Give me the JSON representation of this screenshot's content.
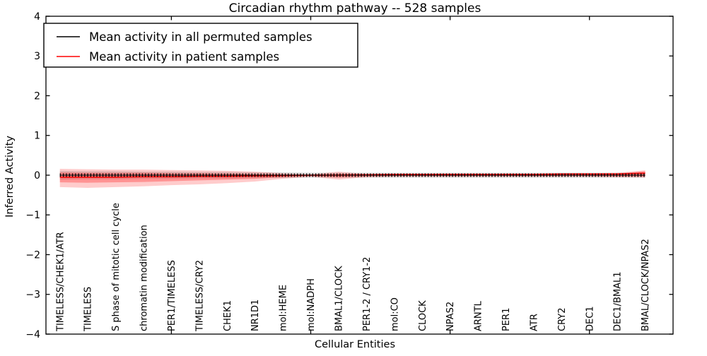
{
  "title": "Circadian rhythm pathway -- 528 samples",
  "legend": {
    "entries": [
      {
        "label": "Mean activity in all permuted samples",
        "color": "#000000"
      },
      {
        "label": "Mean activity in patient samples",
        "color": "#ff0000"
      }
    ]
  },
  "axes": {
    "ylabel": "Inferred Activity",
    "xlabel": "Cellular Entities",
    "ytick_labels": [
      "4",
      "3",
      "2",
      "1",
      "0",
      "−1",
      "−2",
      "−3",
      "−4"
    ],
    "ytick_values": [
      4,
      3,
      2,
      1,
      0,
      -1,
      -2,
      -3,
      -4
    ],
    "xtick_major_values": [
      5,
      10,
      15,
      20
    ],
    "ylim": [
      -4,
      4
    ],
    "xlim": [
      0.5,
      23
    ]
  },
  "colors": {
    "permuted_line": "#000000",
    "patient_line": "#ff0000",
    "permuted_band": "rgba(128,128,128,0.28)",
    "patient_band_outer": "rgba(255,0,0,0.20)",
    "patient_band_inner": "rgba(255,0,0,0.28)",
    "spine": "#000000"
  },
  "chart_data": {
    "type": "line",
    "title": "Circadian rhythm pathway -- 528 samples",
    "xlabel": "Cellular Entities",
    "ylabel": "Inferred Activity",
    "ylim": [
      -4,
      4
    ],
    "xlim": [
      0.5,
      23
    ],
    "grid": false,
    "legend_position": "upper left",
    "categories": [
      "TIMELESS/CHEK1/ATR",
      "TIMELESS",
      "S phase of mitotic cell cycle",
      "chromatin modification",
      "PER1/TIMELESS",
      "TIMELESS/CRY2",
      "CHEK1",
      "NR1D1",
      "mol:HEME",
      "mol:NADPH",
      "BMAL1/CLOCK",
      "PER1-2 / CRY1-2",
      "mol:CO",
      "CLOCK",
      "NPAS2",
      "ARNTL",
      "PER1",
      "ATR",
      "CRY2",
      "DEC1",
      "DEC1/BMAL1",
      "BMAL/CLOCK/NPAS2"
    ],
    "x": [
      1,
      2,
      3,
      4,
      5,
      6,
      7,
      8,
      9,
      10,
      11,
      12,
      13,
      14,
      15,
      16,
      17,
      18,
      19,
      20,
      21,
      22
    ],
    "series": [
      {
        "name": "Mean activity in all permuted samples",
        "color": "#000000",
        "values": [
          0,
          0,
          0,
          0,
          0,
          0,
          0,
          0,
          0,
          0,
          0,
          0,
          0,
          0,
          0,
          0,
          0,
          0,
          0,
          0,
          0,
          0
        ]
      },
      {
        "name": "Mean activity in patient samples",
        "color": "#ff0000",
        "values": [
          -0.05,
          -0.05,
          -0.05,
          -0.04,
          -0.04,
          -0.03,
          -0.03,
          -0.02,
          -0.01,
          0,
          0,
          0.01,
          0.02,
          0.02,
          0.02,
          0.02,
          0.02,
          0.02,
          0.03,
          0.03,
          0.03,
          0.05
        ]
      }
    ],
    "bands": [
      {
        "name": "permuted-samples-range",
        "color": "rgba(128,128,128,0.28)",
        "upper": [
          0.11,
          0.1,
          0.1,
          0.09,
          0.09,
          0.08,
          0.08,
          0.07,
          0.07,
          0.06,
          0.06,
          0.06,
          0.06,
          0.06,
          0.06,
          0.06,
          0.06,
          0.06,
          0.06,
          0.06,
          0.06,
          0.06
        ],
        "lower": [
          -0.11,
          -0.1,
          -0.1,
          -0.09,
          -0.09,
          -0.08,
          -0.08,
          -0.07,
          -0.07,
          -0.06,
          -0.06,
          -0.06,
          -0.06,
          -0.06,
          -0.06,
          -0.06,
          -0.06,
          -0.06,
          -0.06,
          -0.06,
          -0.06,
          -0.06
        ]
      },
      {
        "name": "patient-samples-range-outer",
        "color": "rgba(255,0,0,0.20)",
        "upper": [
          0.16,
          0.15,
          0.14,
          0.14,
          0.13,
          0.12,
          0.11,
          0.09,
          0.05,
          0.02,
          0.09,
          0.03,
          0.03,
          0.03,
          0.04,
          0.04,
          0.04,
          0.04,
          0.05,
          0.05,
          0.06,
          0.12
        ],
        "lower": [
          -0.3,
          -0.32,
          -0.3,
          -0.28,
          -0.25,
          -0.23,
          -0.2,
          -0.16,
          -0.09,
          -0.04,
          -0.11,
          -0.05,
          -0.04,
          -0.04,
          -0.04,
          -0.04,
          -0.04,
          -0.04,
          -0.04,
          -0.04,
          -0.05,
          -0.06
        ]
      },
      {
        "name": "patient-samples-range-inner",
        "color": "rgba(255,0,0,0.28)",
        "upper": [
          0.07,
          0.06,
          0.06,
          0.06,
          0.05,
          0.05,
          0.04,
          0.03,
          0.02,
          0.01,
          0.04,
          0.02,
          0.02,
          0.02,
          0.03,
          0.03,
          0.03,
          0.03,
          0.03,
          0.03,
          0.04,
          0.1
        ],
        "lower": [
          -0.18,
          -0.19,
          -0.18,
          -0.17,
          -0.15,
          -0.13,
          -0.11,
          -0.09,
          -0.05,
          -0.02,
          -0.06,
          -0.03,
          -0.02,
          -0.02,
          -0.02,
          -0.02,
          -0.02,
          -0.02,
          -0.02,
          -0.02,
          -0.03,
          -0.03
        ]
      }
    ]
  }
}
